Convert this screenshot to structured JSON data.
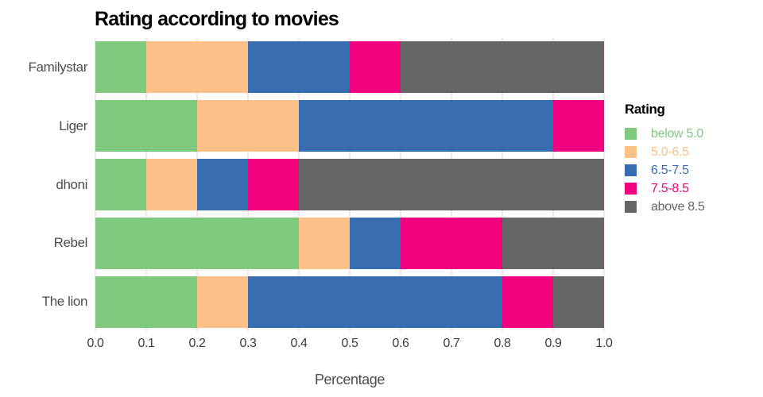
{
  "title": "Rating according to movies",
  "legend": {
    "title": "Rating"
  },
  "chart_data": {
    "type": "bar",
    "orientation": "horizontal",
    "stacked": true,
    "title": "Rating according to movies",
    "xlabel": "Percentage",
    "ylabel": "",
    "xlim": [
      0,
      1
    ],
    "grid": true,
    "legend_position": "right",
    "categories": [
      "Familystar",
      "Liger",
      "dhoni",
      "Rebel",
      "The lion"
    ],
    "series": [
      {
        "name": "below 5.0",
        "color": "#7FC97F",
        "values": [
          0.1,
          0.2,
          0.1,
          0.4,
          0.2
        ]
      },
      {
        "name": "5.0-6.5",
        "color": "#FDC086",
        "values": [
          0.2,
          0.2,
          0.1,
          0.1,
          0.1
        ]
      },
      {
        "name": "6.5-7.5",
        "color": "#386CB0",
        "values": [
          0.2,
          0.5,
          0.1,
          0.1,
          0.5
        ]
      },
      {
        "name": "7.5-8.5",
        "color": "#F0027F",
        "values": [
          0.1,
          0.1,
          0.1,
          0.2,
          0.1
        ]
      },
      {
        "name": "above 8.5",
        "color": "#666666",
        "values": [
          0.4,
          0.0,
          0.6,
          0.2,
          0.1
        ]
      }
    ],
    "x_ticks": [
      "0.0",
      "0.1",
      "0.2",
      "0.3",
      "0.4",
      "0.5",
      "0.6",
      "0.7",
      "0.8",
      "0.9",
      "1.0"
    ]
  },
  "style": {
    "background": "#ffffff",
    "grid_color": "#f6e2e7",
    "axis_text_color": "#4d4d4d",
    "title_color": "#000000"
  }
}
